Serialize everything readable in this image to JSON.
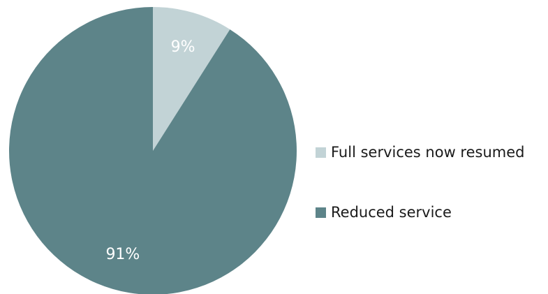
{
  "chart_data": {
    "type": "pie",
    "categories": [
      "Full services now resumed",
      "Reduced service"
    ],
    "values": [
      9,
      91
    ],
    "data_labels": [
      "9%",
      "91%"
    ],
    "colors": [
      "#c2d3d6",
      "#5d8489"
    ],
    "label_color": "#ffffff",
    "start_angle": "12 o'clock",
    "direction": "clockwise",
    "legend_position": "right"
  }
}
